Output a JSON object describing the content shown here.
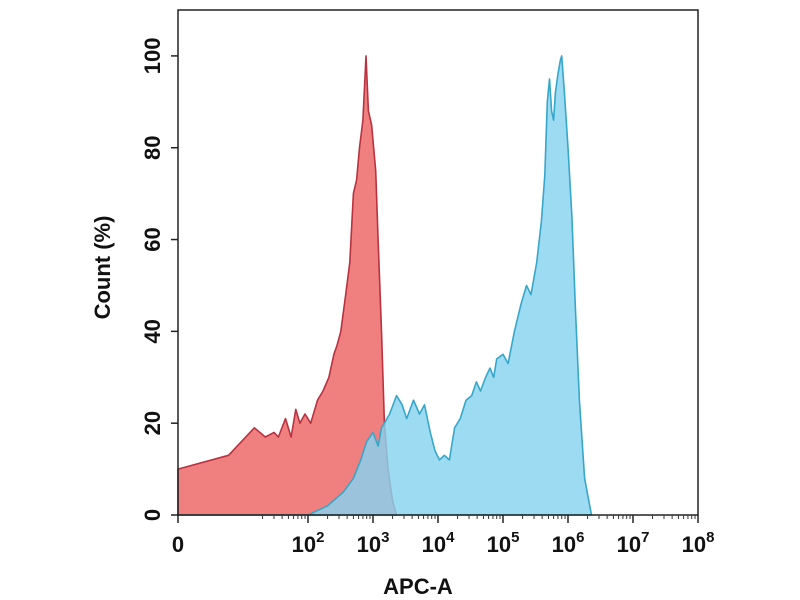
{
  "chart_data": {
    "type": "area",
    "title": "",
    "xlabel": "APC-A",
    "ylabel": "Count  (%)",
    "x_scale": "log",
    "xlim": [
      1,
      100000000
    ],
    "ylim": [
      0,
      110
    ],
    "x_tick_labels": [
      {
        "value": 1,
        "base": "0",
        "exp": ""
      },
      {
        "value": 100,
        "base": "10",
        "exp": "2"
      },
      {
        "value": 1000,
        "base": "10",
        "exp": "3"
      },
      {
        "value": 10000,
        "base": "10",
        "exp": "4"
      },
      {
        "value": 100000,
        "base": "10",
        "exp": "5"
      },
      {
        "value": 1000000,
        "base": "10",
        "exp": "6"
      },
      {
        "value": 10000000,
        "base": "10",
        "exp": "7"
      },
      {
        "value": 100000000,
        "base": "10",
        "exp": "8"
      }
    ],
    "y_ticks": [
      0,
      20,
      40,
      60,
      80,
      100
    ],
    "grid": false,
    "legend": "none",
    "series": [
      {
        "color": "#f08080",
        "edge": "#b83240",
        "points": [
          [
            1,
            10
          ],
          [
            6,
            13
          ],
          [
            15,
            19
          ],
          [
            22,
            17
          ],
          [
            30,
            18
          ],
          [
            35,
            17
          ],
          [
            45,
            21
          ],
          [
            55,
            17
          ],
          [
            65,
            23
          ],
          [
            75,
            20
          ],
          [
            90,
            22
          ],
          [
            110,
            20
          ],
          [
            140,
            25
          ],
          [
            170,
            27
          ],
          [
            210,
            30
          ],
          [
            250,
            35
          ],
          [
            280,
            37
          ],
          [
            320,
            40
          ],
          [
            380,
            48
          ],
          [
            440,
            55
          ],
          [
            500,
            70
          ],
          [
            560,
            73
          ],
          [
            620,
            80
          ],
          [
            700,
            86
          ],
          [
            780,
            100
          ],
          [
            850,
            88
          ],
          [
            950,
            85
          ],
          [
            1100,
            75
          ],
          [
            1200,
            60
          ],
          [
            1350,
            40
          ],
          [
            1500,
            20
          ],
          [
            1700,
            10
          ],
          [
            2000,
            3
          ],
          [
            2300,
            0
          ]
        ]
      },
      {
        "color": "#87d3f0",
        "edge": "#36a7c8",
        "points": [
          [
            1,
            0
          ],
          [
            100,
            0
          ],
          [
            200,
            2
          ],
          [
            350,
            5
          ],
          [
            500,
            8
          ],
          [
            650,
            12
          ],
          [
            800,
            16
          ],
          [
            1000,
            18
          ],
          [
            1200,
            15
          ],
          [
            1350,
            19
          ],
          [
            1500,
            20
          ],
          [
            1800,
            22
          ],
          [
            2300,
            26
          ],
          [
            2800,
            24
          ],
          [
            3300,
            21
          ],
          [
            4200,
            25
          ],
          [
            5200,
            22
          ],
          [
            6200,
            24
          ],
          [
            7600,
            18
          ],
          [
            9000,
            14
          ],
          [
            10500,
            12
          ],
          [
            12500,
            13
          ],
          [
            15000,
            12
          ],
          [
            18000,
            19
          ],
          [
            22000,
            21
          ],
          [
            27000,
            25
          ],
          [
            33000,
            26
          ],
          [
            39000,
            29
          ],
          [
            45000,
            27
          ],
          [
            54000,
            30
          ],
          [
            63000,
            32
          ],
          [
            72000,
            30
          ],
          [
            80000,
            34
          ],
          [
            100000,
            35
          ],
          [
            120000,
            33
          ],
          [
            150000,
            40
          ],
          [
            190000,
            46
          ],
          [
            230000,
            50
          ],
          [
            270000,
            48
          ],
          [
            330000,
            55
          ],
          [
            390000,
            64
          ],
          [
            440000,
            74
          ],
          [
            480000,
            90
          ],
          [
            520000,
            95
          ],
          [
            560000,
            88
          ],
          [
            600000,
            86
          ],
          [
            640000,
            92
          ],
          [
            700000,
            96
          ],
          [
            760000,
            99
          ],
          [
            800000,
            100
          ],
          [
            880000,
            92
          ],
          [
            1000000,
            80
          ],
          [
            1150000,
            65
          ],
          [
            1300000,
            45
          ],
          [
            1500000,
            25
          ],
          [
            1800000,
            8
          ],
          [
            2300000,
            0
          ]
        ]
      }
    ]
  }
}
